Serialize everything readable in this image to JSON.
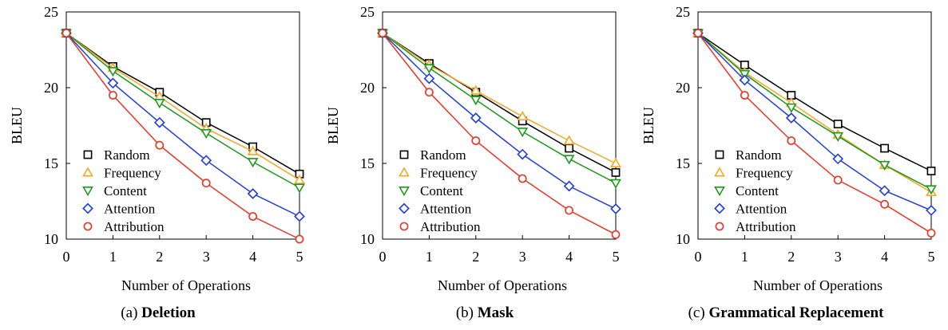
{
  "chart_data": [
    {
      "type": "line",
      "caption_prefix": "(a)",
      "caption_title": "Deletion",
      "xlabel": "Number of Operations",
      "ylabel": "BLEU",
      "x": [
        0,
        1,
        2,
        3,
        4,
        5
      ],
      "xlim": [
        0,
        5
      ],
      "ylim": [
        10,
        25
      ],
      "yticks": [
        10,
        15,
        20,
        25
      ],
      "grid": false,
      "legend_position": "lower-left",
      "series": [
        {
          "name": "Random",
          "marker": "square",
          "color": "#000000",
          "values": [
            23.6,
            21.4,
            19.7,
            17.7,
            16.1,
            14.3
          ]
        },
        {
          "name": "Frequency",
          "marker": "triangle-up",
          "color": "#f5a623",
          "values": [
            23.6,
            21.3,
            19.4,
            17.3,
            15.8,
            13.9
          ]
        },
        {
          "name": "Content",
          "marker": "triangle-down",
          "color": "#1a9a1a",
          "values": [
            23.6,
            21.1,
            19.0,
            17.0,
            15.1,
            13.4
          ]
        },
        {
          "name": "Attention",
          "marker": "diamond",
          "color": "#1f3de0",
          "values": [
            23.6,
            20.3,
            17.7,
            15.2,
            13.0,
            11.5
          ]
        },
        {
          "name": "Attribution",
          "marker": "circle",
          "color": "#ee3322",
          "values": [
            23.6,
            19.5,
            16.2,
            13.7,
            11.5,
            10.0
          ]
        }
      ]
    },
    {
      "type": "line",
      "caption_prefix": "(b)",
      "caption_title": "Mask",
      "xlabel": "Number of Operations",
      "ylabel": "BLEU",
      "x": [
        0,
        1,
        2,
        3,
        4,
        5
      ],
      "xlim": [
        0,
        5
      ],
      "ylim": [
        10,
        25
      ],
      "yticks": [
        10,
        15,
        20,
        25
      ],
      "grid": false,
      "legend_position": "lower-left",
      "series": [
        {
          "name": "Random",
          "marker": "square",
          "color": "#000000",
          "values": [
            23.6,
            21.6,
            19.7,
            17.8,
            16.0,
            14.4
          ]
        },
        {
          "name": "Frequency",
          "marker": "triangle-up",
          "color": "#f5a623",
          "values": [
            23.6,
            21.5,
            19.8,
            18.1,
            16.5,
            15.0
          ]
        },
        {
          "name": "Content",
          "marker": "triangle-down",
          "color": "#1a9a1a",
          "values": [
            23.6,
            21.3,
            19.2,
            17.1,
            15.3,
            13.7
          ]
        },
        {
          "name": "Attention",
          "marker": "diamond",
          "color": "#1f3de0",
          "values": [
            23.6,
            20.6,
            18.0,
            15.6,
            13.5,
            12.0
          ]
        },
        {
          "name": "Attribution",
          "marker": "circle",
          "color": "#ee3322",
          "values": [
            23.6,
            19.7,
            16.5,
            14.0,
            11.9,
            10.3
          ]
        }
      ]
    },
    {
      "type": "line",
      "caption_prefix": "(c)",
      "caption_title": "Grammatical Replacement",
      "xlabel": "Number of Operations",
      "ylabel": "BLEU",
      "x": [
        0,
        1,
        2,
        3,
        4,
        5
      ],
      "xlim": [
        0,
        5
      ],
      "ylim": [
        10,
        25
      ],
      "yticks": [
        10,
        15,
        20,
        25
      ],
      "grid": false,
      "legend_position": "lower-left",
      "series": [
        {
          "name": "Random",
          "marker": "square",
          "color": "#000000",
          "values": [
            23.6,
            21.5,
            19.5,
            17.6,
            16.0,
            14.5
          ]
        },
        {
          "name": "Frequency",
          "marker": "triangle-up",
          "color": "#f5a623",
          "values": [
            23.6,
            21.0,
            19.0,
            16.9,
            14.9,
            13.1
          ]
        },
        {
          "name": "Content",
          "marker": "triangle-down",
          "color": "#1a9a1a",
          "values": [
            23.6,
            20.9,
            18.7,
            16.8,
            14.9,
            13.3
          ]
        },
        {
          "name": "Attention",
          "marker": "diamond",
          "color": "#1f3de0",
          "values": [
            23.6,
            20.5,
            18.0,
            15.3,
            13.2,
            11.9
          ]
        },
        {
          "name": "Attribution",
          "marker": "circle",
          "color": "#ee3322",
          "values": [
            23.6,
            19.5,
            16.5,
            13.9,
            12.3,
            10.4
          ]
        }
      ]
    }
  ]
}
